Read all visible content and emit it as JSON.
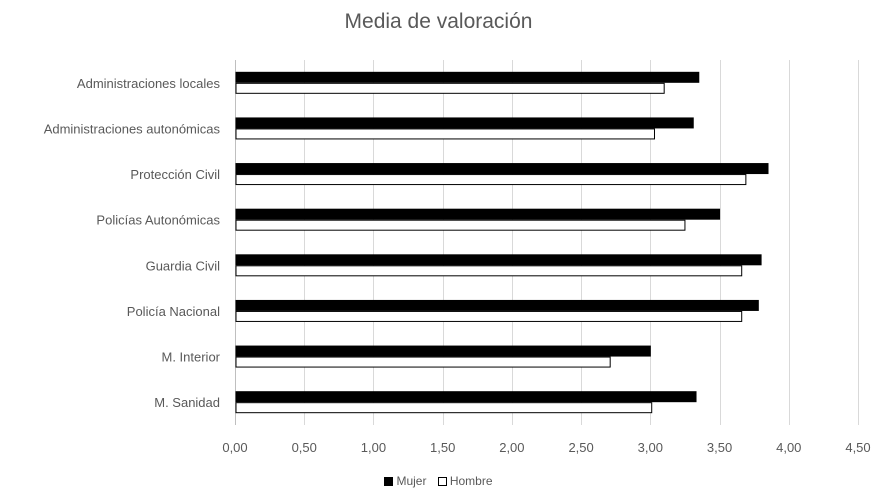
{
  "chart_data": {
    "type": "bar",
    "orientation": "horizontal",
    "title": "Media de valoración",
    "categories": [
      "Administraciones locales",
      "Administraciones autonómicas",
      "Protección Civil",
      "Policías Autonómicas",
      "Guardia Civil",
      "Policía Nacional",
      "M. Interior",
      "M. Sanidad"
    ],
    "series": [
      {
        "name": "Mujer",
        "color": "#000000",
        "values": [
          3.35,
          3.31,
          3.85,
          3.5,
          3.8,
          3.78,
          3.0,
          3.33
        ]
      },
      {
        "name": "Hombre",
        "color": "#ffffff",
        "values": [
          3.1,
          3.03,
          3.69,
          3.25,
          3.66,
          3.66,
          2.71,
          3.01
        ]
      }
    ],
    "xlim": [
      0,
      4.5
    ],
    "xticks": [
      "0,00",
      "0,50",
      "1,00",
      "1,50",
      "2,00",
      "2,50",
      "3,00",
      "3,50",
      "4,00",
      "4,50"
    ],
    "xlabel": "",
    "ylabel": "",
    "grid": true,
    "legend": "bottom-center"
  }
}
